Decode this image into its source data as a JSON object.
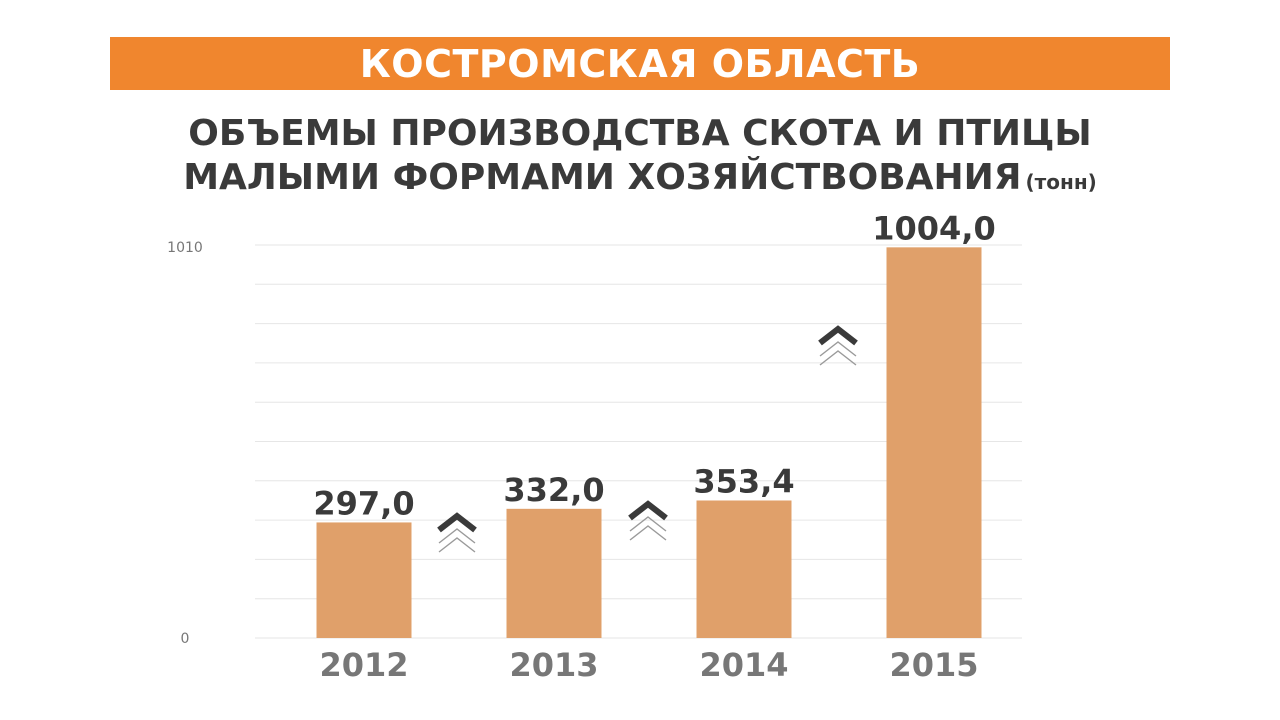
{
  "header": {
    "region": "КОСТРОМСКАЯ ОБЛАСТЬ"
  },
  "title": {
    "line1": "ОБЪЕМЫ ПРОИЗВОДСТВА СКОТА И ПТИЦЫ",
    "line2": "МАЛЫМИ ФОРМАМИ ХОЗЯЙСТВОВАНИЯ",
    "unit": "(тонн)"
  },
  "colors": {
    "banner": "#f0862e",
    "bar": "#e0a06a",
    "text_dark": "#3a3a3a",
    "tick_text": "#777777",
    "grid": "#e6e6e6"
  },
  "chart_data": {
    "type": "bar",
    "categories": [
      "2012",
      "2013",
      "2014",
      "2015"
    ],
    "values": [
      297.0,
      332.0,
      353.4,
      1004.0
    ],
    "value_labels": [
      "297,0",
      "332,0",
      "353,4",
      "1004,0"
    ],
    "title": "ОБЪЕМЫ ПРОИЗВОДСТВА СКОТА И ПТИЦЫ МАЛЫМИ ФОРМАМИ ХОЗЯЙСТВОВАНИЯ",
    "ylabel": "(тонн)",
    "ylim": [
      0,
      1010
    ],
    "yticks": [
      "0",
      "1010"
    ],
    "grid": true,
    "growth_icons": "between each pair of adjacent years",
    "icon": "double-chevron-up-icon"
  }
}
